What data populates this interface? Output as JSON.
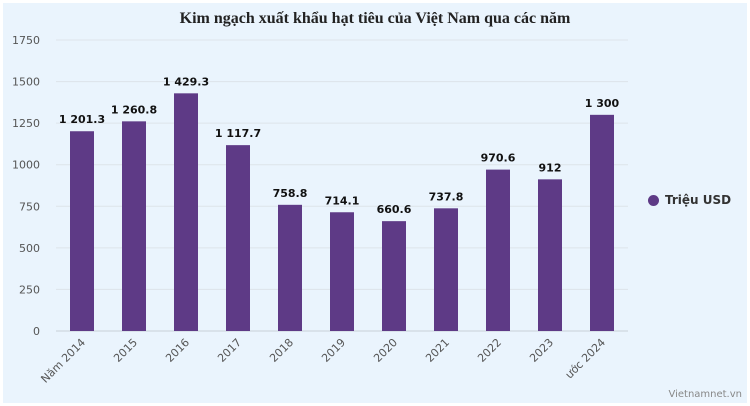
{
  "chart_data": {
    "type": "bar",
    "title": "Kim ngạch xuất khẩu hạt tiêu của Việt Nam qua các năm",
    "categories": [
      "Năm 2014",
      "2015",
      "2016",
      "2017",
      "2018",
      "2019",
      "2020",
      "2021",
      "2022",
      "2023",
      "ước 2024"
    ],
    "series": [
      {
        "name": "Triệu USD",
        "values": [
          1201.3,
          1260.8,
          1429.3,
          1117.7,
          758.8,
          714.1,
          660.6,
          737.8,
          970.6,
          912,
          1300
        ]
      }
    ],
    "data_labels": [
      "1 201.3",
      "1 260.8",
      "1 429.3",
      "1 117.7",
      "758.8",
      "714.1",
      "660.6",
      "737.8",
      "970.6",
      "912",
      "1 300"
    ],
    "ylim": [
      0,
      1750
    ],
    "yticks": [
      0,
      250,
      500,
      750,
      1000,
      1250,
      1500,
      1750
    ],
    "grid": true,
    "legend": "right",
    "xlabel": "",
    "ylabel": ""
  },
  "colors": {
    "bar": "#5e3a86",
    "grid": "#dde3ea",
    "background": "#eaf4fd"
  },
  "credit": "Vietnamnet.vn"
}
